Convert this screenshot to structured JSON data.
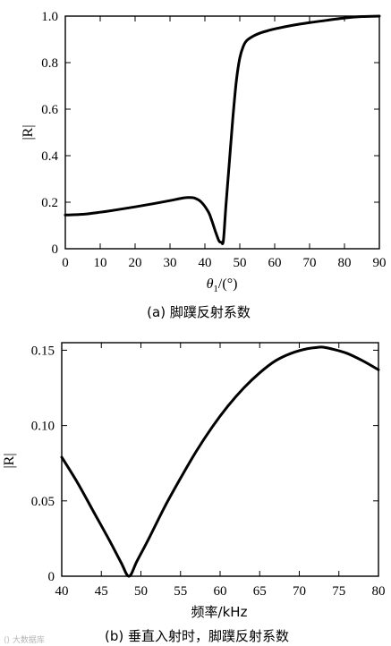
{
  "chart_data": [
    {
      "id": "a",
      "type": "line",
      "caption": "(a)  脚蹼反射系数",
      "xlabel_var": "θ",
      "xlabel_sub": "1",
      "xlabel_unit": "/(°)",
      "ylabel": "|R|",
      "xlim": [
        0,
        90
      ],
      "ylim": [
        0,
        1.0
      ],
      "xticks": [
        0,
        10,
        20,
        30,
        40,
        50,
        60,
        70,
        80,
        90
      ],
      "xtick_labels": [
        "0",
        "10",
        "20",
        "30",
        "40",
        "50",
        "60",
        "70",
        "80",
        "90"
      ],
      "yticks": [
        0,
        0.2,
        0.4,
        0.6,
        0.8,
        1.0
      ],
      "ytick_labels": [
        "0",
        "0.2",
        "0.4",
        "0.6",
        "0.8",
        "1.0"
      ],
      "grid": false,
      "series": [
        {
          "x": [
            0,
            5,
            10,
            15,
            20,
            25,
            30,
            33,
            35,
            37,
            39,
            41,
            42,
            43,
            44,
            44.7,
            45.3,
            46,
            47,
            48,
            49,
            50,
            51,
            52,
            54,
            56,
            58,
            60,
            65,
            70,
            75,
            80,
            85,
            90
          ],
          "y": [
            0.145,
            0.148,
            0.157,
            0.168,
            0.18,
            0.193,
            0.207,
            0.216,
            0.22,
            0.218,
            0.2,
            0.158,
            0.12,
            0.075,
            0.035,
            0.028,
            0.035,
            0.18,
            0.37,
            0.56,
            0.72,
            0.82,
            0.87,
            0.895,
            0.915,
            0.928,
            0.937,
            0.945,
            0.96,
            0.972,
            0.982,
            0.992,
            0.998,
            1.0
          ]
        }
      ]
    },
    {
      "id": "b",
      "type": "line",
      "caption": "(b)  垂直入射时，脚蹼反射系数",
      "xlabel": "频率/kHz",
      "ylabel": "|R|",
      "xlim": [
        40,
        80
      ],
      "ylim": [
        0,
        0.155
      ],
      "xticks": [
        40,
        45,
        50,
        55,
        60,
        65,
        70,
        75,
        80
      ],
      "xtick_labels": [
        "40",
        "45",
        "50",
        "55",
        "60",
        "65",
        "70",
        "75",
        "80"
      ],
      "yticks": [
        0,
        0.05,
        0.1,
        0.15
      ],
      "ytick_labels": [
        "0",
        "0.05",
        "0.10",
        "0.15"
      ],
      "grid": false,
      "series": [
        {
          "x": [
            40,
            42,
            44,
            46,
            47.5,
            48.5,
            49.5,
            51,
            53,
            55,
            57,
            59,
            61,
            63,
            65,
            67,
            69,
            71,
            72.5,
            73,
            74,
            76,
            78,
            80
          ],
          "y": [
            0.079,
            0.062,
            0.043,
            0.024,
            0.009,
            0.0,
            0.01,
            0.025,
            0.046,
            0.065,
            0.083,
            0.099,
            0.113,
            0.125,
            0.135,
            0.143,
            0.148,
            0.151,
            0.152,
            0.152,
            0.151,
            0.148,
            0.143,
            0.137
          ]
        }
      ]
    }
  ],
  "watermark": "⟨⟩ 大数据库"
}
